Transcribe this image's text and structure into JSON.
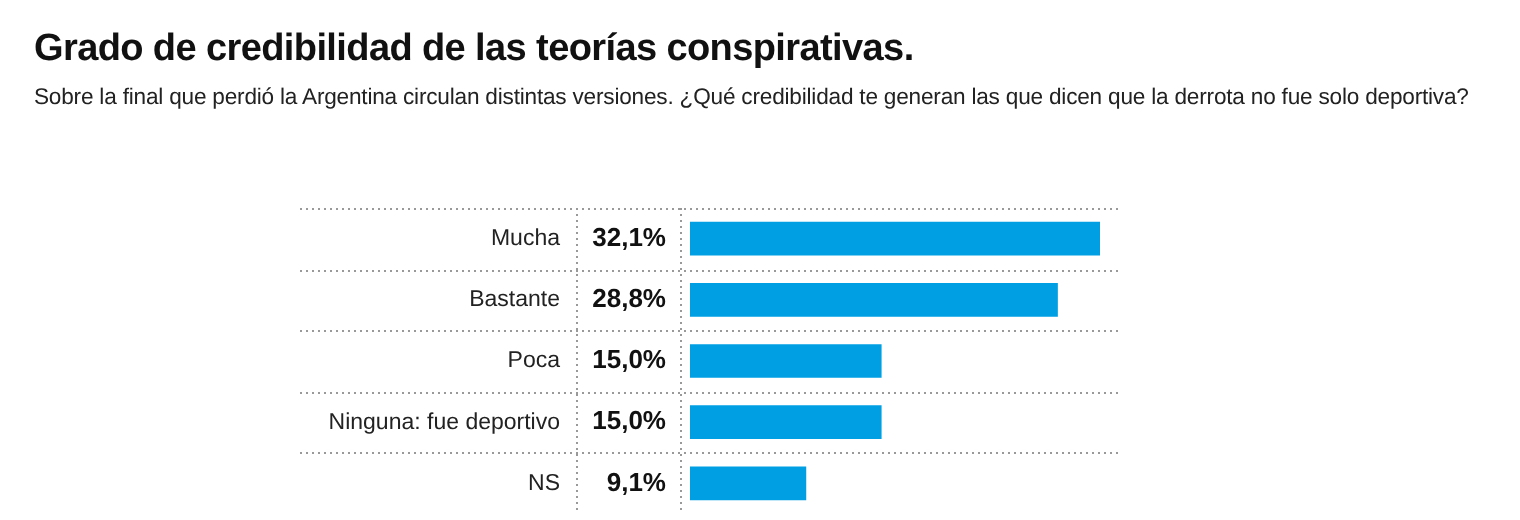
{
  "chart_data": {
    "type": "bar",
    "orientation": "horizontal",
    "title": "Grado de credibilidad de las teorías conspirativas.",
    "subtitle": "Sobre la final que perdió la Argentina circulan distintas versiones. ¿Qué credibilidad te generan las que dicen que la derrota no fue solo deportiva?",
    "categories": [
      "Mucha",
      "Bastante",
      "Poca",
      "Ninguna: fue deportivo",
      "NS"
    ],
    "values": [
      32.1,
      28.8,
      15.0,
      15.0,
      9.1
    ],
    "value_labels": [
      "32,1%",
      "28,8%",
      "15,0%",
      "15,0%",
      "9,1%"
    ],
    "color": "#009fe3",
    "grid": true,
    "legend": false
  }
}
